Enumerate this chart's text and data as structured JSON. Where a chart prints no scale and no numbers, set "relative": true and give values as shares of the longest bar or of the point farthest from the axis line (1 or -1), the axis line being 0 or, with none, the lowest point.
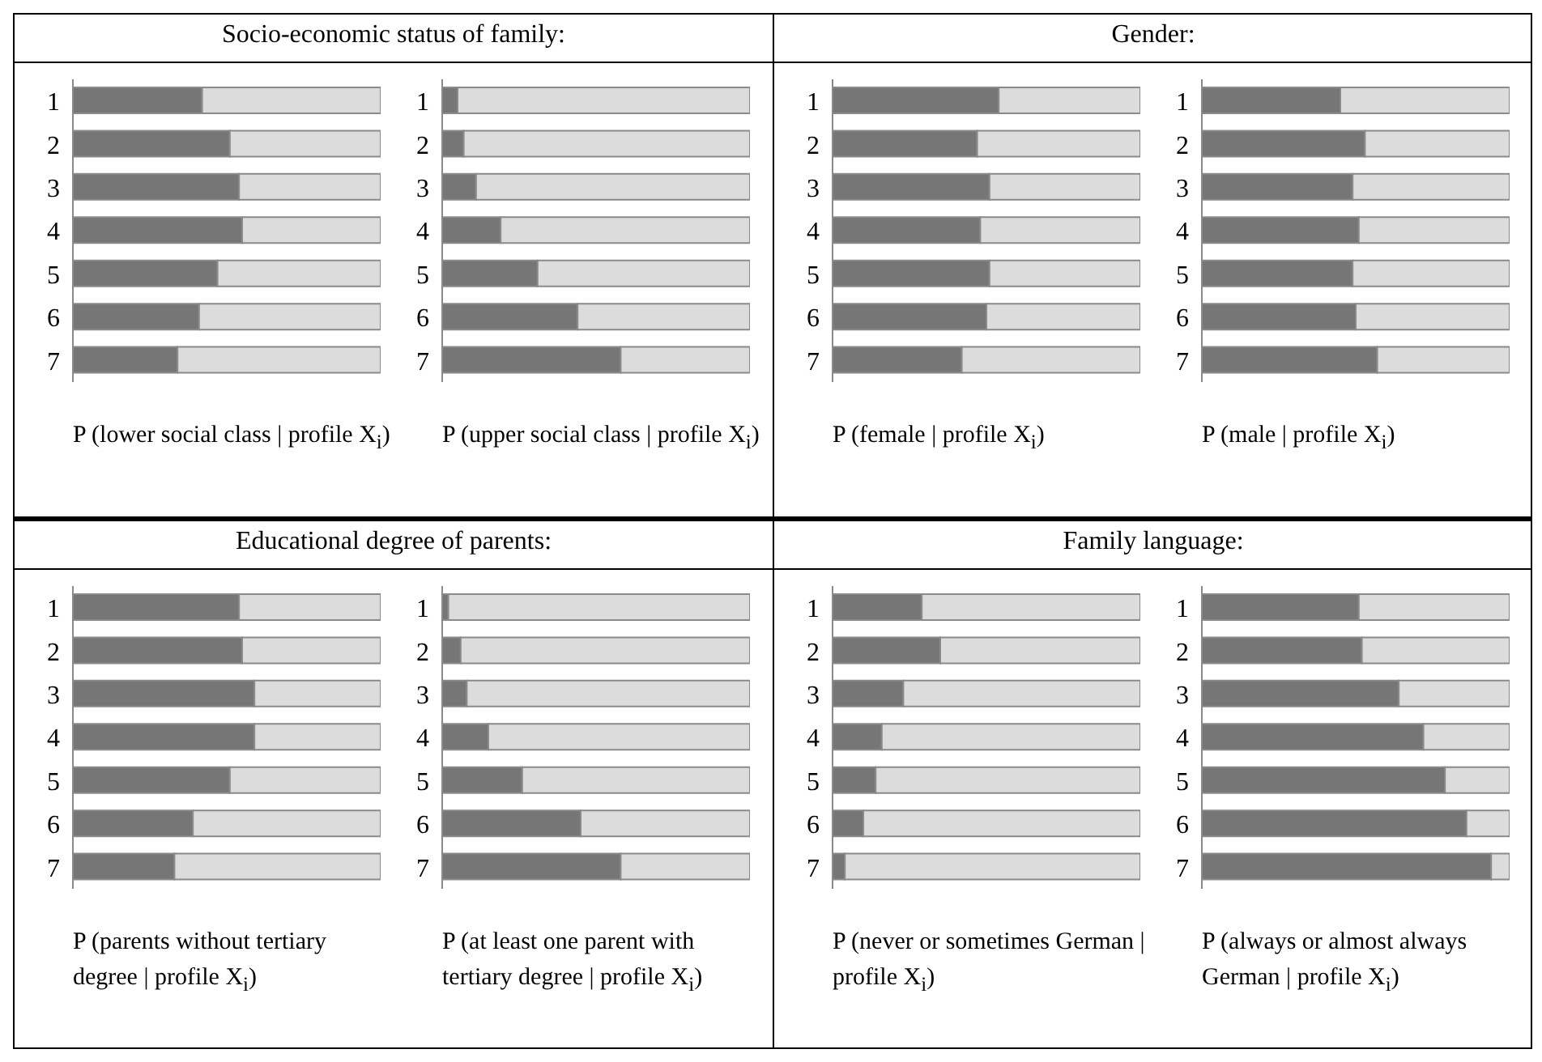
{
  "chart_data": [
    {
      "type": "bar",
      "title": "Socio-economic status of family:",
      "xlabel": "P (lower social class | profile X$_{i}$)",
      "orientation": "horizontal",
      "stacked": true,
      "relative": true,
      "categories": [
        "1",
        "2",
        "3",
        "4",
        "5",
        "6",
        "7"
      ],
      "series": [
        {
          "color": "#767676",
          "values": [
            0.42,
            0.51,
            0.54,
            0.55,
            0.47,
            0.41,
            0.34
          ]
        },
        {
          "color": "#dcdcdc",
          "values": [
            0.58,
            0.49,
            0.46,
            0.45,
            0.53,
            0.59,
            0.66
          ]
        }
      ]
    },
    {
      "type": "bar",
      "xlabel": "P (upper social class | profile X$_{i}$)",
      "orientation": "horizontal",
      "stacked": true,
      "relative": true,
      "categories": [
        "1",
        "2",
        "3",
        "4",
        "5",
        "6",
        "7"
      ],
      "series": [
        {
          "color": "#767676",
          "values": [
            0.05,
            0.07,
            0.11,
            0.19,
            0.31,
            0.44,
            0.58
          ]
        },
        {
          "color": "#dcdcdc",
          "values": [
            0.95,
            0.93,
            0.89,
            0.81,
            0.69,
            0.56,
            0.42
          ]
        }
      ]
    },
    {
      "type": "bar",
      "title": "Gender:",
      "xlabel": "P (female | profile X$_{i}$)",
      "orientation": "horizontal",
      "stacked": true,
      "relative": true,
      "categories": [
        "1",
        "2",
        "3",
        "4",
        "5",
        "6",
        "7"
      ],
      "series": [
        {
          "color": "#767676",
          "values": [
            0.54,
            0.47,
            0.51,
            0.48,
            0.51,
            0.5,
            0.42
          ]
        },
        {
          "color": "#dcdcdc",
          "values": [
            0.46,
            0.53,
            0.49,
            0.52,
            0.49,
            0.5,
            0.58
          ]
        }
      ]
    },
    {
      "type": "bar",
      "xlabel": "P (male | profile X$_{i}$)",
      "orientation": "horizontal",
      "stacked": true,
      "relative": true,
      "categories": [
        "1",
        "2",
        "3",
        "4",
        "5",
        "6",
        "7"
      ],
      "series": [
        {
          "color": "#767676",
          "values": [
            0.45,
            0.53,
            0.49,
            0.51,
            0.49,
            0.5,
            0.57
          ]
        },
        {
          "color": "#dcdcdc",
          "values": [
            0.55,
            0.47,
            0.51,
            0.49,
            0.51,
            0.5,
            0.43
          ]
        }
      ]
    },
    {
      "type": "bar",
      "title": "Educational degree of parents:",
      "xlabel": "P (parents without tertiary degree | profile X$_{i}$)",
      "orientation": "horizontal",
      "stacked": true,
      "relative": true,
      "categories": [
        "1",
        "2",
        "3",
        "4",
        "5",
        "6",
        "7"
      ],
      "series": [
        {
          "color": "#767676",
          "values": [
            0.54,
            0.55,
            0.59,
            0.59,
            0.51,
            0.39,
            0.33
          ]
        },
        {
          "color": "#dcdcdc",
          "values": [
            0.46,
            0.45,
            0.41,
            0.41,
            0.49,
            0.61,
            0.67
          ]
        }
      ]
    },
    {
      "type": "bar",
      "xlabel": "P (at least one parent with tertiary degree | profile X$_{i}$)",
      "orientation": "horizontal",
      "stacked": true,
      "relative": true,
      "categories": [
        "1",
        "2",
        "3",
        "4",
        "5",
        "6",
        "7"
      ],
      "series": [
        {
          "color": "#767676",
          "values": [
            0.02,
            0.06,
            0.08,
            0.15,
            0.26,
            0.45,
            0.58
          ]
        },
        {
          "color": "#dcdcdc",
          "values": [
            0.98,
            0.94,
            0.92,
            0.85,
            0.74,
            0.55,
            0.42
          ]
        }
      ]
    },
    {
      "type": "bar",
      "title": "Family language:",
      "xlabel": "P (never or sometimes German | profile X$_{i}$)",
      "orientation": "horizontal",
      "stacked": true,
      "relative": true,
      "categories": [
        "1",
        "2",
        "3",
        "4",
        "5",
        "6",
        "7"
      ],
      "series": [
        {
          "color": "#767676",
          "values": [
            0.29,
            0.35,
            0.23,
            0.16,
            0.14,
            0.1,
            0.04
          ]
        },
        {
          "color": "#dcdcdc",
          "values": [
            0.71,
            0.65,
            0.77,
            0.84,
            0.86,
            0.9,
            0.96
          ]
        }
      ]
    },
    {
      "type": "bar",
      "xlabel": "P (always or almost always German | profile X$_{i}$)",
      "orientation": "horizontal",
      "stacked": true,
      "relative": true,
      "categories": [
        "1",
        "2",
        "3",
        "4",
        "5",
        "6",
        "7"
      ],
      "series": [
        {
          "color": "#767676",
          "values": [
            0.51,
            0.52,
            0.64,
            0.72,
            0.79,
            0.86,
            0.94
          ]
        },
        {
          "color": "#dcdcdc",
          "values": [
            0.49,
            0.48,
            0.36,
            0.28,
            0.21,
            0.14,
            0.06
          ]
        }
      ]
    }
  ]
}
